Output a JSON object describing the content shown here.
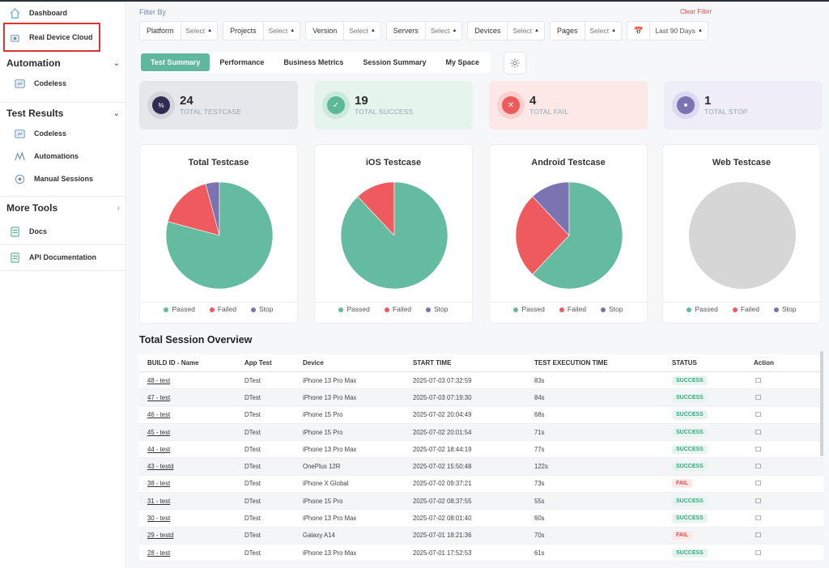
{
  "sidebar": {
    "dashboard": "Dashboard",
    "real_device_cloud": "Real Device Cloud",
    "automation": {
      "label": "Automation",
      "items": [
        {
          "label": "Codeless"
        }
      ]
    },
    "test_results": {
      "label": "Test Results",
      "items": [
        {
          "label": "Codeless"
        },
        {
          "label": "Automations"
        },
        {
          "label": "Manual Sessions"
        }
      ]
    },
    "more_tools": {
      "label": "More Tools",
      "items": [
        {
          "label": "Docs"
        },
        {
          "label": "API Documentation"
        }
      ]
    }
  },
  "filters": {
    "title": "Filter By",
    "clear": "Clear Filter",
    "items": [
      {
        "label": "Platform",
        "value": "Select"
      },
      {
        "label": "Projects",
        "value": "Select"
      },
      {
        "label": "Version",
        "value": "Select"
      },
      {
        "label": "Servers",
        "value": "Select"
      },
      {
        "label": "Devices",
        "value": "Select"
      },
      {
        "label": "Pages",
        "value": "Select"
      }
    ],
    "date": "Last 90 Days"
  },
  "tabs": [
    "Test Summary",
    "Performance",
    "Business Metrics",
    "Session Summary",
    "My Space"
  ],
  "stats": [
    {
      "value": "24",
      "label": "TOTAL TESTCASE"
    },
    {
      "value": "19",
      "label": "TOTAL SUCCESS"
    },
    {
      "value": "4",
      "label": "TOTAL FAIL"
    },
    {
      "value": "1",
      "label": "TOTAL STOP"
    }
  ],
  "legend": {
    "passed": "Passed",
    "failed": "Failed",
    "stop": "Stop"
  },
  "colors": {
    "passed": "#65bba0",
    "failed": "#ef5a5f",
    "stop": "#7a74b2",
    "empty": "#d6d6d6",
    "accent": "#5fb89d"
  },
  "chart_data": [
    {
      "type": "pie",
      "title": "Total Testcase",
      "categories": [
        "Passed",
        "Failed",
        "Stop"
      ],
      "values": [
        19,
        4,
        1
      ]
    },
    {
      "type": "pie",
      "title": "iOS Testcase",
      "categories": [
        "Passed",
        "Failed",
        "Stop"
      ],
      "values": [
        8.8,
        1.2,
        0
      ]
    },
    {
      "type": "pie",
      "title": "Android Testcase",
      "categories": [
        "Passed",
        "Failed",
        "Stop"
      ],
      "values": [
        6.2,
        2.6,
        1.2
      ]
    },
    {
      "type": "pie",
      "title": "Web Testcase",
      "categories": [
        "Passed",
        "Failed",
        "Stop"
      ],
      "values": [
        0,
        0,
        0
      ]
    }
  ],
  "sessions": {
    "title": "Total Session Overview",
    "headers": [
      "BUILD ID - Name",
      "App Test",
      "Device",
      "START TIME",
      "TEST EXECUTION TIME",
      "STATUS",
      "Action"
    ],
    "rows": [
      [
        "48 - test",
        "DTest",
        "iPhone 13 Pro Max",
        "2025-07-03 07:32:59",
        "83s",
        "SUCCESS"
      ],
      [
        "47 - test",
        "DTest",
        "iPhone 13 Pro Max",
        "2025-07-03 07:19:30",
        "84s",
        "SUCCESS"
      ],
      [
        "46 - test",
        "DTest",
        "iPhone 15 Pro",
        "2025-07-02 20:04:49",
        "68s",
        "SUCCESS"
      ],
      [
        "45 - test",
        "DTest",
        "iPhone 15 Pro",
        "2025-07-02 20:01:54",
        "71s",
        "SUCCESS"
      ],
      [
        "44 - test",
        "DTest",
        "iPhone 13 Pro Max",
        "2025-07-02 18:44:19",
        "77s",
        "SUCCESS"
      ],
      [
        "43 - testd",
        "DTest",
        "OnePlus 12R",
        "2025-07-02 15:50:48",
        "122s",
        "SUCCESS"
      ],
      [
        "38 - test",
        "DTest",
        "iPhone X Global",
        "2025-07-02 09:37:21",
        "73s",
        "FAIL"
      ],
      [
        "31 - test",
        "DTest",
        "iPhone 15 Pro",
        "2025-07-02 08:37:55",
        "55s",
        "SUCCESS"
      ],
      [
        "30 - test",
        "DTest",
        "iPhone 13 Pro Max",
        "2025-07-02 08:01:40",
        "60s",
        "SUCCESS"
      ],
      [
        "29 - testd",
        "DTest",
        "Galaxy A14",
        "2025-07-01 18:21:36",
        "70s",
        "FAIL"
      ],
      [
        "28 - test",
        "DTest",
        "iPhone 13 Pro Max",
        "2025-07-01 17:52:53",
        "61s",
        "SUCCESS"
      ]
    ]
  }
}
